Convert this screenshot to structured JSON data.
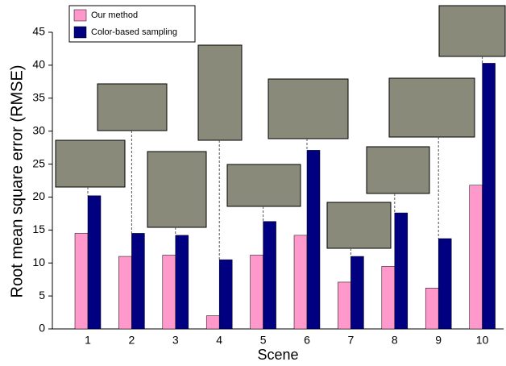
{
  "chart_data": {
    "type": "bar",
    "x_label": "Scene",
    "y_label": "Root mean square error (RMSE)",
    "categories": [
      "1",
      "2",
      "3",
      "4",
      "5",
      "6",
      "7",
      "8",
      "9",
      "10"
    ],
    "series": [
      {
        "name": "Our method",
        "color": "#ff99cc",
        "values": [
          14.5,
          11,
          11.2,
          2,
          11.2,
          14.2,
          7.1,
          9.5,
          6.2,
          21.8
        ]
      },
      {
        "name": "Color-based sampling",
        "color": "#000080",
        "values": [
          20.2,
          14.5,
          14.2,
          10.5,
          16.3,
          27.1,
          11,
          17.6,
          13.7,
          40.3
        ]
      }
    ],
    "ylim": [
      0,
      45
    ],
    "yticks": [
      0,
      5,
      10,
      15,
      20,
      25,
      30,
      35,
      40,
      45
    ],
    "grid": false,
    "legend": "top-left"
  }
}
